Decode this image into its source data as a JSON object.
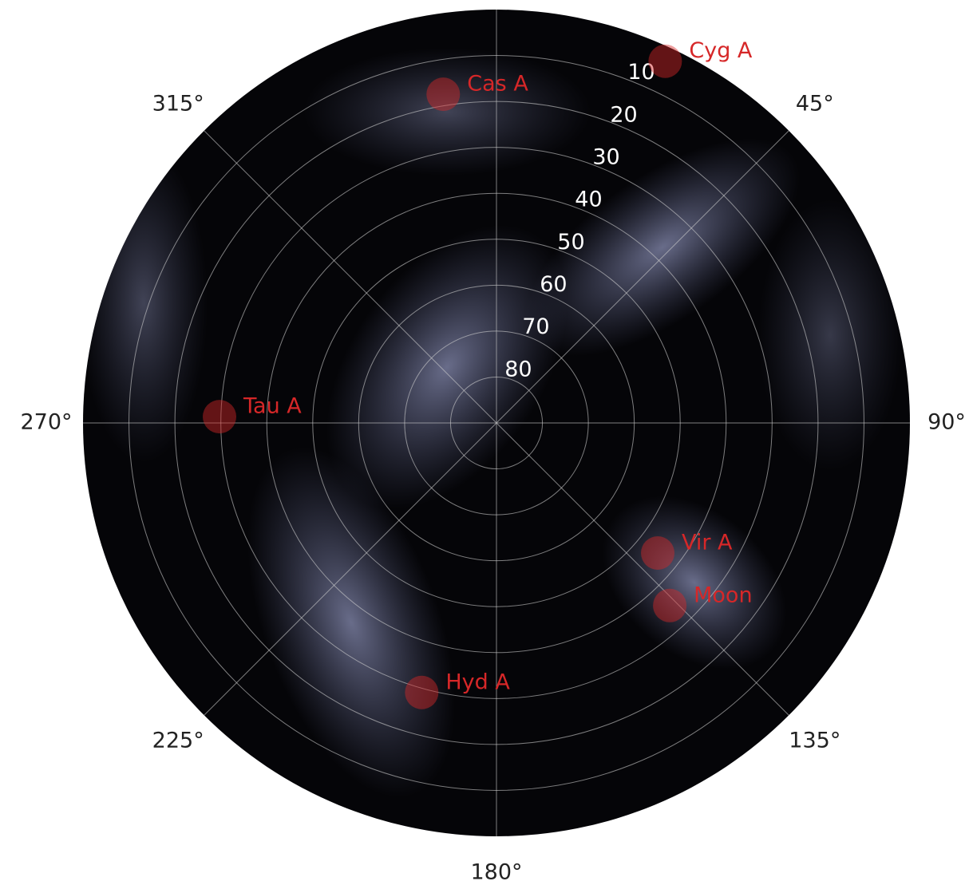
{
  "chart_data": {
    "type": "polar_scatter",
    "theta_direction": "clockwise",
    "theta_zero": "top",
    "rlim": [
      90,
      0
    ],
    "rticks": [
      10,
      20,
      30,
      40,
      50,
      60,
      70,
      80
    ],
    "thetaticks": [
      {
        "value": 0,
        "label": null
      },
      {
        "value": 45,
        "label": "45°"
      },
      {
        "value": 90,
        "label": "90°"
      },
      {
        "value": 135,
        "label": "135°"
      },
      {
        "value": 180,
        "label": "180°"
      },
      {
        "value": 225,
        "label": "225°"
      },
      {
        "value": 270,
        "label": "270°"
      },
      {
        "value": 315,
        "label": "315°"
      }
    ],
    "grid": true,
    "color": "#d62728",
    "sources": [
      {
        "name": "Cyg A",
        "az": 25.0,
        "el": 3.1
      },
      {
        "name": "Cas A",
        "az": 350.8,
        "el": 17.5
      },
      {
        "name": "Tau A",
        "az": 271.3,
        "el": 29.7
      },
      {
        "name": "Vir A",
        "az": 128.9,
        "el": 44.9
      },
      {
        "name": "Moon",
        "az": 136.5,
        "el": 35.2
      },
      {
        "name": "Hyd A",
        "az": 195.5,
        "el": 29.1
      }
    ]
  }
}
